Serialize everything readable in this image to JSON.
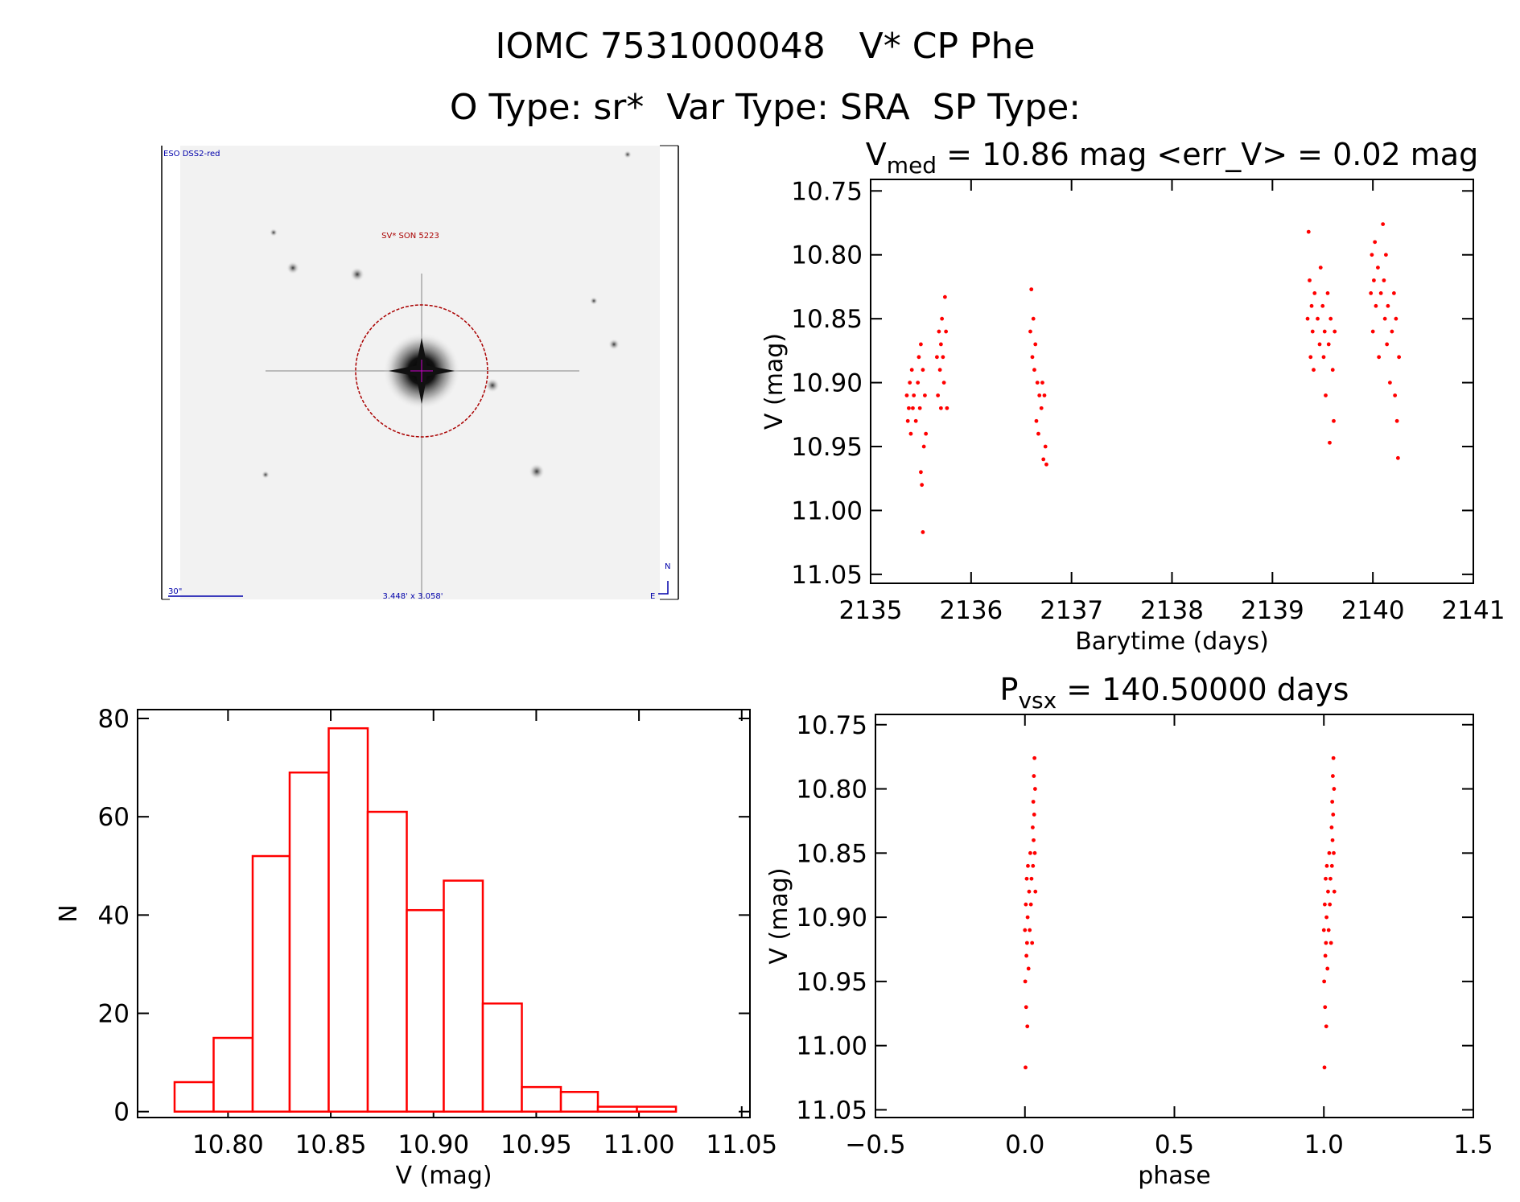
{
  "header": {
    "line1": "IOMC 7531000048   V* CP Phe",
    "line2": "O Type: sr*  Var Type: SRA  SP Type:"
  },
  "image": {
    "survey": "ESO DSS2-red",
    "target": "SV* SON 5223",
    "scale": "30\"",
    "size": "3.448' x 3.058'",
    "north": "N",
    "east": "E"
  },
  "chart_data": [
    {
      "type": "scatter",
      "color": "#ff0000",
      "yinvert": true,
      "title": {
        "main": "V",
        "sub": "med",
        "rest": " = 10.86 mag <err_V> = 0.02 mag"
      },
      "xlabel": "Barytime (days)",
      "ylabel": "V (mag)",
      "xlim": [
        2135,
        2141
      ],
      "xticks": [
        2135,
        2136,
        2137,
        2138,
        2139,
        2140,
        2141
      ],
      "ylim": [
        10.741,
        11.057
      ],
      "yticks": [
        10.75,
        {
          "value": 10.8,
          "label": "10.80"
        },
        10.85,
        {
          "value": 10.9,
          "label": "10.90"
        },
        10.95,
        {
          "value": 11.0,
          "label": "11.00"
        },
        11.05
      ],
      "x": [
        2135.36,
        2135.37,
        2135.38,
        2135.39,
        2135.4,
        2135.41,
        2135.42,
        2135.43,
        2135.45,
        2135.47,
        2135.48,
        2135.49,
        2135.5,
        2135.5,
        2135.51,
        2135.52,
        2135.52,
        2135.53,
        2135.54,
        2135.55,
        2135.66,
        2135.67,
        2135.68,
        2135.69,
        2135.7,
        2135.7,
        2135.71,
        2135.72,
        2135.73,
        2135.74,
        2135.75,
        2135.76,
        2136.59,
        2136.6,
        2136.61,
        2136.62,
        2136.63,
        2136.64,
        2136.65,
        2136.66,
        2136.67,
        2136.68,
        2136.7,
        2136.71,
        2136.72,
        2136.73,
        2136.74,
        2136.75,
        2139.35,
        2139.36,
        2139.37,
        2139.38,
        2139.39,
        2139.4,
        2139.41,
        2139.42,
        2139.45,
        2139.47,
        2139.48,
        2139.5,
        2139.51,
        2139.52,
        2139.53,
        2139.55,
        2139.56,
        2139.57,
        2139.58,
        2139.6,
        2139.61,
        2139.62,
        2139.98,
        2139.99,
        2140.0,
        2140.01,
        2140.02,
        2140.03,
        2140.05,
        2140.06,
        2140.08,
        2140.1,
        2140.11,
        2140.12,
        2140.13,
        2140.14,
        2140.15,
        2140.17,
        2140.19,
        2140.21,
        2140.22,
        2140.23,
        2140.24,
        2140.25,
        2140.26
      ],
      "values": [
        10.91,
        10.93,
        10.92,
        10.9,
        10.94,
        10.89,
        10.92,
        10.91,
        10.93,
        10.9,
        10.88,
        10.92,
        10.87,
        10.97,
        10.98,
        10.89,
        11.017,
        10.95,
        10.91,
        10.94,
        10.88,
        10.91,
        10.86,
        10.89,
        10.87,
        10.92,
        10.85,
        10.88,
        10.9,
        10.833,
        10.86,
        10.92,
        10.86,
        10.827,
        10.88,
        10.85,
        10.89,
        10.87,
        10.93,
        10.9,
        10.94,
        10.91,
        10.92,
        10.9,
        10.96,
        10.91,
        10.95,
        10.964,
        10.85,
        10.782,
        10.82,
        10.88,
        10.84,
        10.86,
        10.89,
        10.83,
        10.85,
        10.87,
        10.81,
        10.84,
        10.88,
        10.86,
        10.91,
        10.83,
        10.87,
        10.947,
        10.85,
        10.89,
        10.93,
        10.86,
        10.83,
        10.8,
        10.86,
        10.82,
        10.79,
        10.84,
        10.81,
        10.88,
        10.83,
        10.776,
        10.82,
        10.85,
        10.8,
        10.87,
        10.84,
        10.9,
        10.86,
        10.83,
        10.91,
        10.85,
        10.93,
        10.959,
        10.88
      ]
    },
    {
      "type": "histogram",
      "color": "#ff0000",
      "xlabel": "V (mag)",
      "ylabel": "N",
      "xlim": [
        10.756,
        11.054
      ],
      "xticks": [
        {
          "value": 10.8,
          "label": "10.80"
        },
        10.85,
        {
          "value": 10.9,
          "label": "10.90"
        },
        10.95,
        {
          "value": 11.0,
          "label": "11.00"
        },
        11.05
      ],
      "ylim": [
        -1.2,
        81.8
      ],
      "yticks": [
        0,
        20,
        40,
        60,
        80
      ],
      "bins": [
        10.774,
        10.793,
        10.812,
        10.83,
        10.849,
        10.868,
        10.887,
        10.905,
        10.924,
        10.943,
        10.962,
        10.98,
        10.999,
        11.018
      ],
      "values": [
        6,
        15,
        52,
        69,
        78,
        61,
        41,
        47,
        22,
        5,
        4,
        1,
        1
      ]
    },
    {
      "type": "scatter",
      "color": "#ff0000",
      "yinvert": true,
      "title": {
        "main": "P",
        "sub": "vsx",
        "rest": " = 140.50000 days"
      },
      "xlabel": "phase",
      "ylabel": "V (mag)",
      "xlim": [
        -0.5,
        1.5
      ],
      "xticks": [
        {
          "value": -0.5,
          "label": "−0.5"
        },
        {
          "value": 0,
          "label": "0.0"
        },
        0.5,
        {
          "value": 1,
          "label": "1.0"
        },
        1.5
      ],
      "ylim": [
        10.742,
        11.056
      ],
      "yticks": [
        10.75,
        {
          "value": 10.8,
          "label": "10.80"
        },
        10.85,
        {
          "value": 10.9,
          "label": "10.90"
        },
        10.95,
        {
          "value": 11.0,
          "label": "11.00"
        },
        11.05
      ],
      "x": [
        0.0,
        0.001,
        0.002,
        0.003,
        0.004,
        0.005,
        0.006,
        0.007,
        0.008,
        0.009,
        0.01,
        0.012,
        0.014,
        0.016,
        0.018,
        0.02,
        0.022,
        0.024,
        0.026,
        0.027,
        0.028,
        0.029,
        0.03,
        0.031,
        0.032,
        0.033,
        0.034,
        0.035,
        1.0,
        1.001,
        1.002,
        1.003,
        1.004,
        1.005,
        1.006,
        1.007,
        1.008,
        1.009,
        1.01,
        1.012,
        1.014,
        1.016,
        1.018,
        1.02,
        1.022,
        1.024,
        1.026,
        1.027,
        1.028,
        1.029,
        1.03,
        1.031,
        1.032,
        1.033,
        1.034,
        1.035
      ],
      "values": [
        10.91,
        10.95,
        11.017,
        10.89,
        10.97,
        10.93,
        10.87,
        10.92,
        10.985,
        10.9,
        10.86,
        10.94,
        10.88,
        10.91,
        10.85,
        10.89,
        10.87,
        10.92,
        10.83,
        10.86,
        10.81,
        10.84,
        10.79,
        10.82,
        10.776,
        10.85,
        10.8,
        10.88,
        10.91,
        10.95,
        11.017,
        10.89,
        10.97,
        10.93,
        10.87,
        10.92,
        10.985,
        10.9,
        10.86,
        10.94,
        10.88,
        10.91,
        10.85,
        10.89,
        10.87,
        10.92,
        10.83,
        10.86,
        10.81,
        10.84,
        10.79,
        10.82,
        10.776,
        10.85,
        10.8,
        10.88
      ]
    }
  ]
}
